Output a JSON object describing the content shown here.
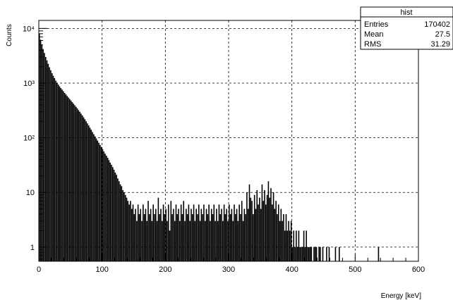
{
  "chart_data": {
    "type": "histogram",
    "title": "",
    "xlabel": "Energy [keV]",
    "ylabel": "Counts",
    "xlim": [
      0,
      600
    ],
    "ylim": [
      0.55,
      14000
    ],
    "log_y": true,
    "grid": true,
    "bin_width": 2,
    "x_ticks": [
      {
        "value": 0,
        "label": "0"
      },
      {
        "value": 100,
        "label": "100"
      },
      {
        "value": 200,
        "label": "200"
      },
      {
        "value": 300,
        "label": "300"
      },
      {
        "value": 400,
        "label": "400"
      },
      {
        "value": 500,
        "label": "500"
      },
      {
        "value": 600,
        "label": "600"
      }
    ],
    "y_ticks": [
      {
        "value": 1,
        "label": "1"
      },
      {
        "value": 10,
        "label": "10"
      },
      {
        "value": 100,
        "label": "10²"
      },
      {
        "value": 1000,
        "label": "10³"
      },
      {
        "value": 10000,
        "label": "10⁴"
      }
    ],
    "stats_box": {
      "title": "hist",
      "rows": [
        {
          "label": "Entries",
          "value": "170402"
        },
        {
          "label": "Mean",
          "value": "27.5"
        },
        {
          "label": "RMS",
          "value": "31.29"
        }
      ]
    },
    "series": [
      {
        "values": [
          8000,
          6200,
          5000,
          4200,
          3550,
          3000,
          2600,
          2250,
          1950,
          1720,
          1520,
          1360,
          1230,
          1110,
          1010,
          940,
          870,
          810,
          760,
          710,
          660,
          620,
          580,
          545,
          510,
          478,
          448,
          420,
          393,
          368,
          344,
          320,
          298,
          276,
          256,
          236,
          218,
          200,
          183,
          168,
          153,
          140,
          127,
          116,
          106,
          97,
          89,
          81,
          74,
          68,
          62,
          56,
          51,
          47,
          43,
          39,
          35,
          32,
          29,
          26,
          23,
          21,
          18,
          16,
          14,
          13,
          11,
          10,
          9,
          8,
          7,
          6,
          7,
          5,
          6,
          4,
          5,
          3,
          6,
          4,
          5,
          3,
          6,
          4,
          5,
          3,
          7,
          4,
          5,
          3,
          6,
          4,
          5,
          3,
          8,
          4,
          5,
          3,
          6,
          4,
          5,
          3,
          6,
          2,
          7,
          4,
          5,
          3,
          6,
          4,
          5,
          3,
          6,
          4,
          7,
          3,
          5,
          4,
          6,
          3,
          5,
          4,
          6,
          3,
          5,
          4,
          6,
          3,
          5,
          4,
          6,
          3,
          5,
          4,
          6,
          3,
          5,
          4,
          6,
          3,
          5,
          3,
          6,
          4,
          5,
          3,
          6,
          4,
          5,
          3,
          6,
          4,
          5,
          3,
          6,
          4,
          5,
          3,
          6,
          4,
          7,
          3,
          5,
          4,
          10,
          5,
          14,
          8,
          7,
          4,
          9,
          5,
          11,
          6,
          8,
          5,
          14,
          7,
          11,
          6,
          9,
          16,
          8,
          12,
          6,
          10,
          5,
          7,
          4,
          6,
          3,
          5,
          3,
          4,
          2,
          4,
          2,
          3,
          2,
          3,
          1,
          2,
          1,
          2,
          1,
          2,
          1,
          1,
          1,
          2,
          1,
          2,
          1,
          1,
          1,
          1,
          0,
          1,
          1,
          1,
          0,
          1,
          1,
          0,
          1,
          0,
          0,
          1,
          0,
          1,
          0,
          0,
          0,
          0,
          1,
          0,
          0,
          1,
          0,
          0,
          0,
          0,
          0,
          0,
          0,
          0,
          0,
          0,
          0,
          0,
          0,
          0,
          0,
          0,
          0,
          0,
          0,
          0,
          0,
          0,
          0,
          0,
          0,
          0,
          0,
          0,
          0,
          0,
          1,
          0,
          0,
          0,
          0,
          0,
          0,
          0,
          0,
          0,
          0,
          0,
          0,
          0,
          0,
          0,
          0,
          0,
          0,
          0,
          0,
          0,
          0,
          0,
          0,
          0,
          0,
          0,
          0,
          0,
          0,
          0
        ]
      }
    ]
  }
}
